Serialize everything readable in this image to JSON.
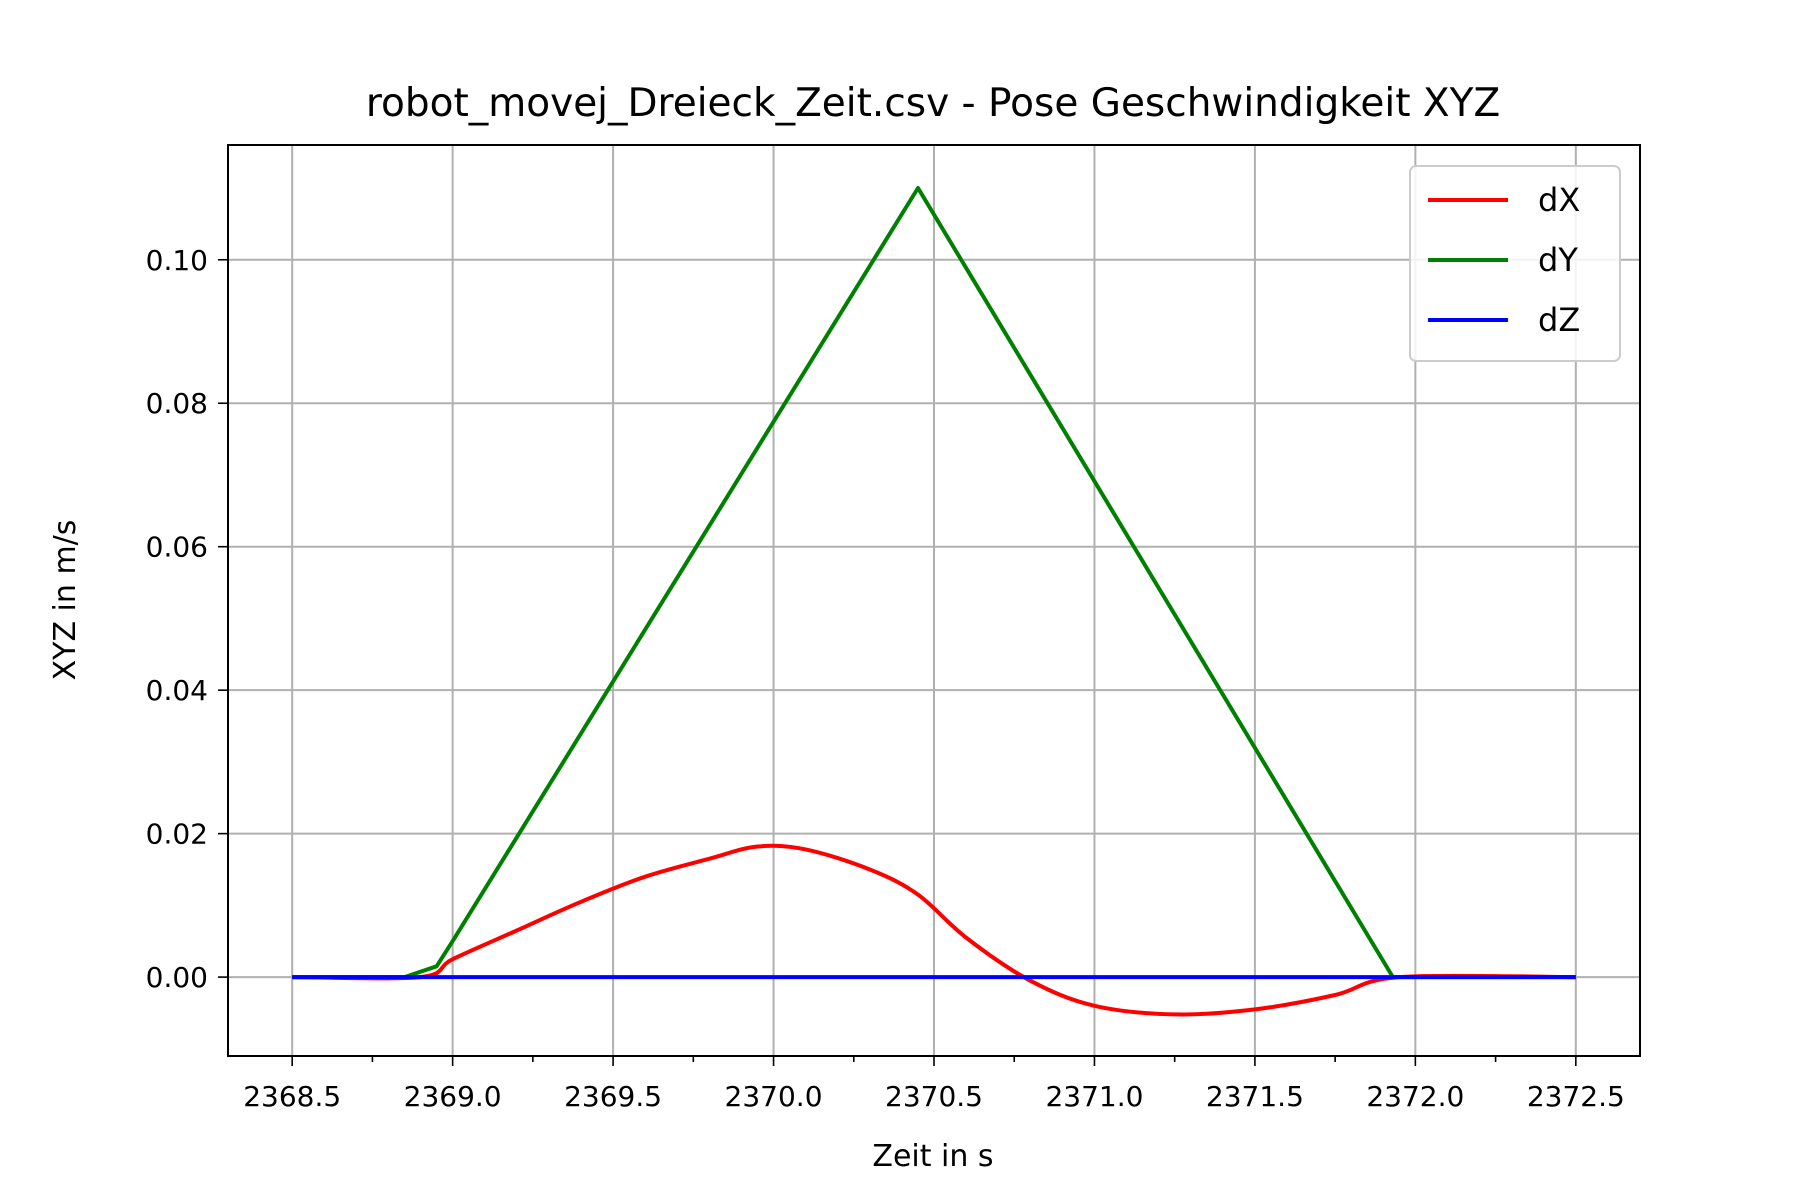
{
  "chart_data": {
    "type": "line",
    "title": "robot_movej_Dreieck_Zeit.csv - Pose Geschwindigkeit XYZ",
    "xlabel": "Zeit in s",
    "ylabel": "XYZ in m/s",
    "xlim": [
      2368.3,
      2372.7
    ],
    "ylim": [
      -0.011,
      0.116
    ],
    "xticks": [
      2368.5,
      2369.0,
      2369.5,
      2370.0,
      2370.5,
      2371.0,
      2371.5,
      2372.0,
      2372.5
    ],
    "xtick_labels": [
      "2368.5",
      "2369.0",
      "2369.5",
      "2370.0",
      "2370.5",
      "2371.0",
      "2371.5",
      "2372.0",
      "2372.5"
    ],
    "xminor_ticks": [
      2368.75,
      2369.25,
      2369.75,
      2370.25,
      2370.75,
      2371.25,
      2371.75,
      2372.25
    ],
    "yticks": [
      0.0,
      0.02,
      0.04,
      0.06,
      0.08,
      0.1
    ],
    "ytick_labels": [
      "0.00",
      "0.02",
      "0.04",
      "0.06",
      "0.08",
      "0.10"
    ],
    "grid": true,
    "legend_position": "top-right",
    "series": [
      {
        "name": "dX",
        "color": "#ff0000",
        "x": [
          2368.5,
          2368.9,
          2369.0,
          2369.2,
          2369.4,
          2369.6,
          2369.8,
          2369.95,
          2370.1,
          2370.3,
          2370.45,
          2370.6,
          2370.8,
          2371.0,
          2371.25,
          2371.5,
          2371.75,
          2371.95,
          2372.5
        ],
        "y": [
          0.0,
          0.0,
          0.0025,
          0.0065,
          0.0105,
          0.014,
          0.0165,
          0.0182,
          0.0178,
          0.015,
          0.0115,
          0.0055,
          -0.0005,
          -0.004,
          -0.0052,
          -0.0045,
          -0.0025,
          0.0,
          0.0
        ]
      },
      {
        "name": "dY",
        "color": "#008000",
        "x": [
          2368.5,
          2368.85,
          2368.95,
          2369.0,
          2370.45,
          2371.93,
          2372.5
        ],
        "y": [
          0.0,
          0.0,
          0.0015,
          0.005,
          0.11,
          0.0,
          0.0
        ]
      },
      {
        "name": "dZ",
        "color": "#0000ff",
        "x": [
          2368.5,
          2372.5
        ],
        "y": [
          0.0,
          0.0
        ]
      }
    ]
  }
}
